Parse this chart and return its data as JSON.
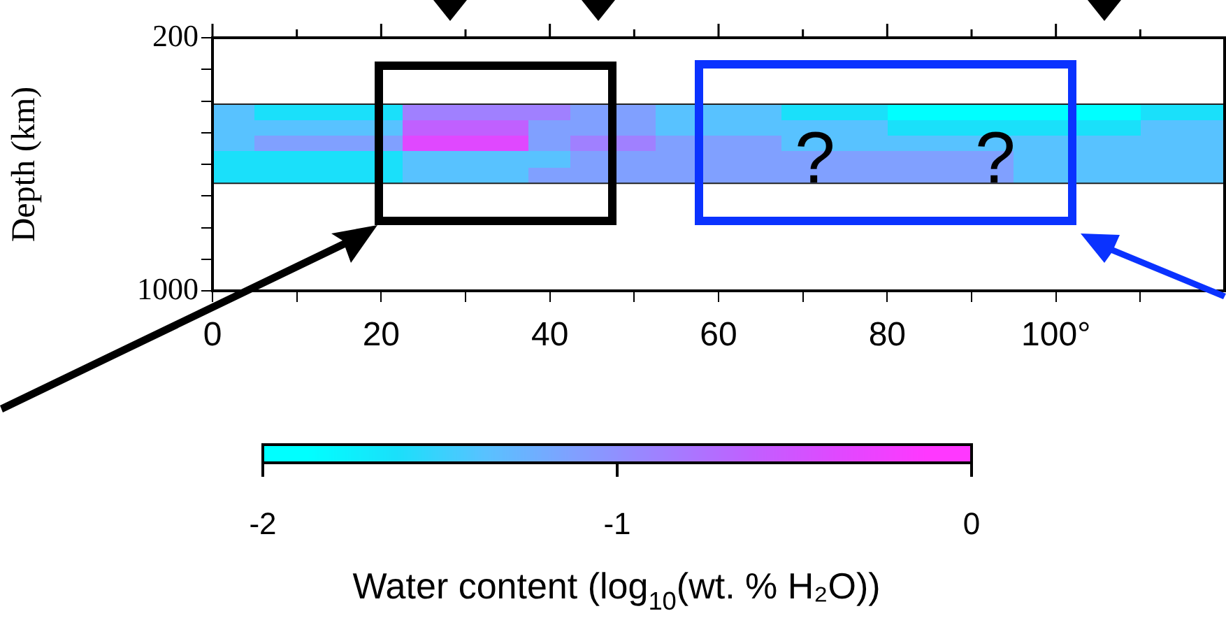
{
  "chart_data": {
    "type": "heatmap",
    "ylabel": "Depth (km)",
    "clabel": "Water content (log$_{10}$(wt. % H₂O))",
    "x": [
      1.25,
      3.75,
      6.25,
      8.75,
      11.25,
      13.75,
      16.25,
      18.75,
      21.25,
      23.75,
      26.25,
      28.75,
      31.25,
      33.75,
      36.25,
      38.75,
      41.25,
      43.75,
      46.25,
      48.75,
      51.25,
      53.75,
      56.25,
      58.75,
      61.25,
      63.75,
      66.25,
      68.75,
      71.25,
      73.75,
      76.25,
      78.75,
      81.25,
      83.75,
      86.25,
      88.75,
      91.25,
      93.75,
      96.25,
      98.75,
      101.25,
      103.75,
      106.25,
      108.75,
      111.25,
      113.75,
      116.25,
      118.75
    ],
    "y": [
      435,
      485,
      535,
      585,
      635
    ],
    "cells": [
      [
        -1.375,
        -1.375,
        -1.625,
        -1.625,
        -1.625,
        -1.625,
        -1.625,
        -1.625,
        -1.625,
        -0.875,
        -0.875,
        -0.875,
        -0.875,
        -0.875,
        -0.875,
        -0.875,
        -0.875,
        -1.125,
        -1.125,
        -1.125,
        -1.125,
        -1.375,
        -1.375,
        -1.375,
        -1.375,
        -1.375,
        -1.375,
        -1.625,
        -1.625,
        -1.625,
        -1.625,
        -1.625,
        -1.875,
        -1.875,
        -1.875,
        -1.875,
        -1.875,
        -1.875,
        -1.875,
        -1.875,
        -1.875,
        -1.875,
        -1.875,
        -1.875,
        -1.625,
        -1.625,
        -1.625,
        -1.625
      ],
      [
        -1.375,
        -1.375,
        -1.375,
        -1.375,
        -1.375,
        -1.375,
        -1.375,
        -1.375,
        -1.375,
        -0.625,
        -0.625,
        -0.625,
        -0.625,
        -0.625,
        -0.625,
        -1.125,
        -1.125,
        -1.125,
        -1.125,
        -1.125,
        -1.125,
        -1.375,
        -1.375,
        -1.375,
        -1.375,
        -1.375,
        -1.375,
        -1.375,
        -1.375,
        -1.375,
        -1.375,
        -1.375,
        -1.625,
        -1.625,
        -1.625,
        -1.625,
        -1.625,
        -1.625,
        -1.625,
        -1.625,
        -1.625,
        -1.625,
        -1.625,
        -1.625,
        -1.375,
        -1.375,
        -1.375,
        -1.375
      ],
      [
        -1.375,
        -1.375,
        -1.125,
        -1.125,
        -1.125,
        -1.125,
        -1.125,
        -1.125,
        -1.125,
        -0.375,
        -0.375,
        -0.375,
        -0.375,
        -0.375,
        -0.375,
        -1.125,
        -1.125,
        -0.875,
        -0.875,
        -0.875,
        -0.875,
        -1.125,
        -1.125,
        -1.125,
        -1.125,
        -1.125,
        -1.125,
        -1.375,
        -1.375,
        -1.375,
        -1.375,
        -1.375,
        -1.375,
        -1.375,
        -1.375,
        -1.375,
        -1.375,
        -1.375,
        -1.375,
        -1.375,
        -1.375,
        -1.375,
        -1.375,
        -1.375,
        -1.375,
        -1.375,
        -1.375,
        -1.375
      ],
      [
        -1.625,
        -1.625,
        -1.625,
        -1.625,
        -1.625,
        -1.625,
        -1.625,
        -1.625,
        -1.625,
        -1.375,
        -1.375,
        -1.375,
        -1.375,
        -1.375,
        -1.375,
        -1.375,
        -1.375,
        -1.125,
        -1.125,
        -1.125,
        -1.125,
        -1.125,
        -1.125,
        -1.125,
        -1.125,
        -1.125,
        -1.125,
        -1.125,
        -1.125,
        -1.125,
        -1.125,
        -1.125,
        -1.125,
        -1.125,
        -1.125,
        -1.125,
        -1.125,
        -1.125,
        -1.375,
        -1.375,
        -1.375,
        -1.375,
        -1.375,
        -1.375,
        -1.375,
        -1.375,
        -1.375,
        -1.375
      ],
      [
        -1.625,
        -1.625,
        -1.625,
        -1.625,
        -1.625,
        -1.625,
        -1.625,
        -1.625,
        -1.625,
        -1.375,
        -1.375,
        -1.375,
        -1.375,
        -1.375,
        -1.375,
        -1.125,
        -1.125,
        -1.125,
        -1.125,
        -1.125,
        -1.125,
        -1.125,
        -1.125,
        -1.125,
        -1.125,
        -1.125,
        -1.125,
        -1.125,
        -1.125,
        -1.125,
        -1.125,
        -1.125,
        -1.125,
        -1.125,
        -1.125,
        -1.125,
        -1.125,
        -1.125,
        -1.375,
        -1.375,
        -1.375,
        -1.375,
        -1.375,
        -1.375,
        -1.375,
        -1.375,
        -1.375,
        -1.375
      ]
    ],
    "colors": [
      "#00ffff",
      "#1ae0fa",
      "#58c2ff",
      "#80a0ff",
      "#a080ff",
      "#c060ff",
      "#e048ff",
      "#ff38ff"
    ],
    "clim": [
      -2,
      0
    ],
    "cticks": [
      -2,
      -1,
      0
    ],
    "xlim": [
      0,
      120
    ],
    "xticks": [
      0,
      {
        "value": 10,
        "label": null
      },
      20,
      {
        "value": 30,
        "label": null
      },
      40,
      {
        "value": 50,
        "label": null
      },
      60,
      {
        "value": 70,
        "label": null
      },
      80,
      {
        "value": 90,
        "label": null
      },
      {
        "value": 100,
        "label": "100°"
      },
      {
        "value": 110,
        "label": null
      }
    ],
    "ylim": [
      1000,
      200
    ],
    "yticks": [
      200,
      {
        "value": 300,
        "label": null
      },
      {
        "value": 400,
        "label": null
      },
      {
        "value": 500,
        "label": null
      },
      {
        "value": 600,
        "label": null
      },
      {
        "value": 700,
        "label": null
      },
      {
        "value": 800,
        "label": null
      },
      {
        "value": 900,
        "label": null
      },
      1000
    ],
    "annotations": [
      "?",
      "?"
    ]
  }
}
